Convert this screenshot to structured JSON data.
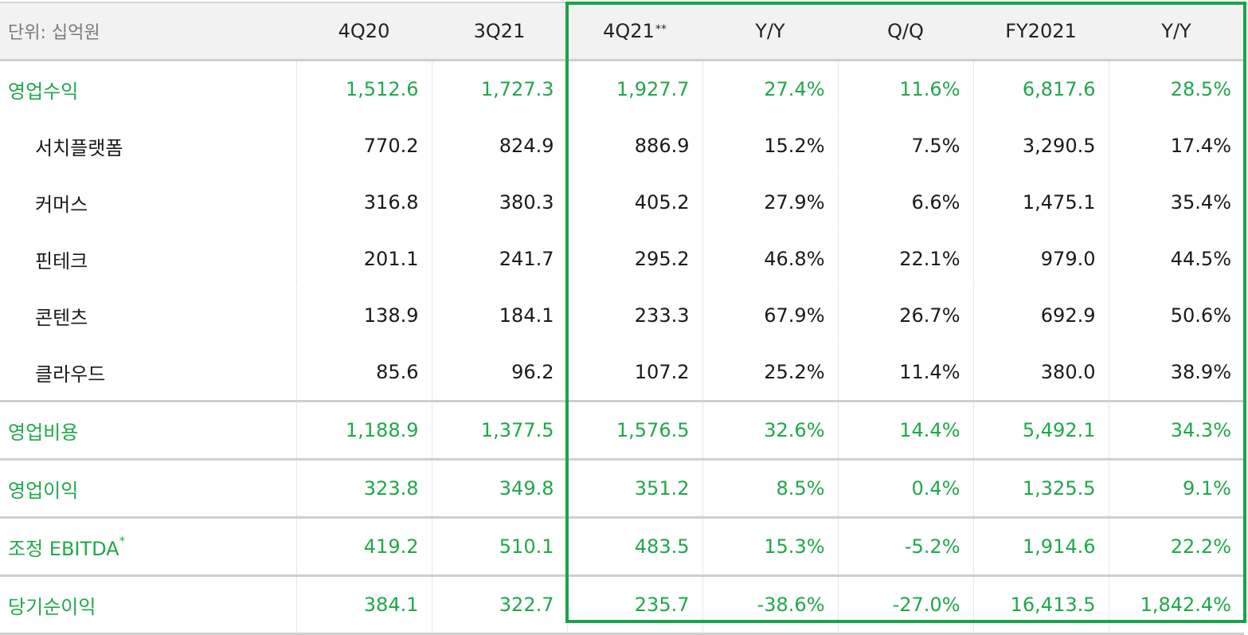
{
  "header": {
    "unit": "단위: 십억원",
    "columns": [
      "4Q20",
      "3Q21",
      "4Q21",
      "Y/Y",
      "Q/Q",
      "FY2021",
      "Y/Y"
    ],
    "col3_mark": "**"
  },
  "rows": [
    {
      "label": "영업수익",
      "values": [
        "1,512.6",
        "1,727.3",
        "1,927.7",
        "27.4%",
        "11.6%",
        "6,817.6",
        "28.5%"
      ]
    },
    {
      "label": "서치플랫폼",
      "values": [
        "770.2",
        "824.9",
        "886.9",
        "15.2%",
        "7.5%",
        "3,290.5",
        "17.4%"
      ]
    },
    {
      "label": "커머스",
      "values": [
        "316.8",
        "380.3",
        "405.2",
        "27.9%",
        "6.6%",
        "1,475.1",
        "35.4%"
      ]
    },
    {
      "label": "핀테크",
      "values": [
        "201.1",
        "241.7",
        "295.2",
        "46.8%",
        "22.1%",
        "979.0",
        "44.5%"
      ]
    },
    {
      "label": "콘텐츠",
      "values": [
        "138.9",
        "184.1",
        "233.3",
        "67.9%",
        "26.7%",
        "692.9",
        "50.6%"
      ]
    },
    {
      "label": "클라우드",
      "values": [
        "85.6",
        "96.2",
        "107.2",
        "25.2%",
        "11.4%",
        "380.0",
        "38.9%"
      ]
    },
    {
      "label": "영업비용",
      "values": [
        "1,188.9",
        "1,377.5",
        "1,576.5",
        "32.6%",
        "14.4%",
        "5,492.1",
        "34.3%"
      ]
    },
    {
      "label": "영업이익",
      "values": [
        "323.8",
        "349.8",
        "351.2",
        "8.5%",
        "0.4%",
        "1,325.5",
        "9.1%"
      ]
    },
    {
      "label": "조정 EBITDA",
      "mark": "*",
      "values": [
        "419.2",
        "510.1",
        "483.5",
        "15.3%",
        "-5.2%",
        "1,914.6",
        "22.2%"
      ]
    },
    {
      "label": "당기순이익",
      "values": [
        "384.1",
        "322.7",
        "235.7",
        "-38.6%",
        "-27.0%",
        "16,413.5",
        "1,842.4%"
      ]
    }
  ],
  "colors": {
    "accent": "#1fa84a",
    "highlight_border": "#1aa34a",
    "header_bg": "#f2f2f2"
  }
}
